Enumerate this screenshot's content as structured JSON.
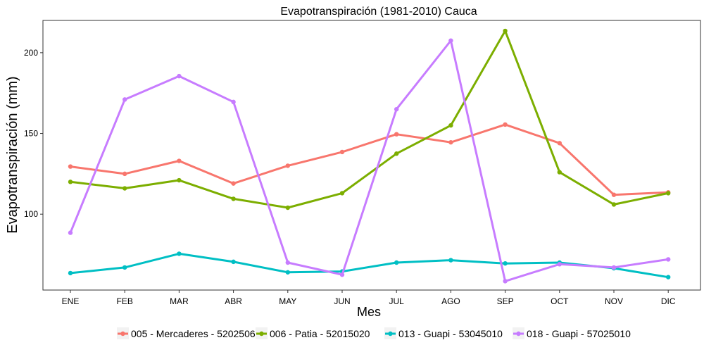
{
  "chart_data": {
    "type": "line",
    "title": "Evapotranspiración (1981-2010)  Cauca",
    "xlabel": "Mes",
    "ylabel": "Evapotranspiración  (mm)",
    "categories": [
      "ENE",
      "FEB",
      "MAR",
      "ABR",
      "MAY",
      "JUN",
      "JUL",
      "AGO",
      "SEP",
      "OCT",
      "NOV",
      "DIC"
    ],
    "yticks": [
      100,
      150,
      200
    ],
    "ylim": [
      53,
      220
    ],
    "grid": false,
    "legend_position": "bottom",
    "series": [
      {
        "name": "005 - Mercaderes - 52025060",
        "color": "#F8766D",
        "values": [
          129.5,
          125.0,
          133.0,
          119.0,
          130.0,
          138.5,
          149.5,
          144.5,
          155.5,
          144.0,
          112.0,
          113.5
        ]
      },
      {
        "name": "006 - Patia - 52015020",
        "color": "#7CAE00",
        "values": [
          120.0,
          116.0,
          121.0,
          109.5,
          104.0,
          113.0,
          137.5,
          155.0,
          213.5,
          126.0,
          106.0,
          113.0
        ]
      },
      {
        "name": "013 - Guapi - 53045010",
        "color": "#00BFC4",
        "values": [
          63.5,
          67.0,
          75.5,
          70.5,
          64.0,
          64.5,
          70.0,
          71.5,
          69.5,
          70.0,
          66.5,
          61.0
        ]
      },
      {
        "name": "018 - Guapi - 57025010",
        "color": "#C77CFF",
        "values": [
          88.5,
          171.0,
          185.5,
          169.5,
          70.0,
          62.5,
          165.0,
          207.5,
          58.5,
          69.0,
          67.0,
          72.0
        ]
      }
    ]
  }
}
